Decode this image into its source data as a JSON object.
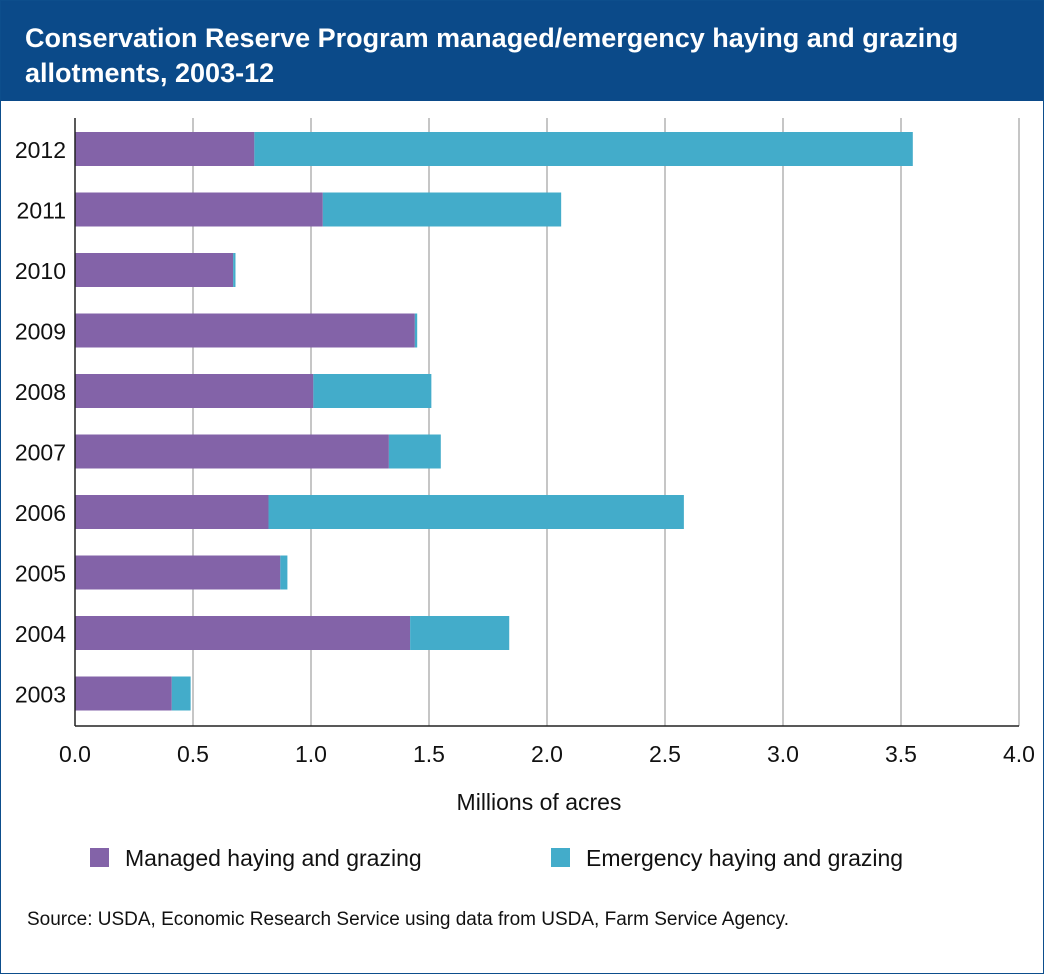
{
  "colors": {
    "title_background": "#0b4a89",
    "title_text": "#ffffff",
    "managed": "#8363a8",
    "emergency": "#43acca",
    "gridline": "#8c8c8c"
  },
  "chart_data": {
    "type": "bar",
    "orientation": "horizontal",
    "stacked": true,
    "title": "Conservation Reserve Program managed/emergency haying and grazing allotments, 2003-12",
    "xlabel": "Millions of acres",
    "ylabel": "",
    "xlim": [
      0,
      4
    ],
    "x_ticks": [
      "0.0",
      "0.5",
      "1.0",
      "1.5",
      "2.0",
      "2.5",
      "3.0",
      "3.5",
      "4.0"
    ],
    "grid": "vertical gridlines",
    "legend_position": "bottom",
    "categories": [
      "2012",
      "2011",
      "2010",
      "2009",
      "2008",
      "2007",
      "2006",
      "2005",
      "2004",
      "2003"
    ],
    "series": [
      {
        "name": "Managed haying and grazing",
        "values": [
          0.76,
          1.05,
          0.67,
          1.44,
          1.01,
          1.33,
          0.82,
          0.87,
          1.42,
          0.41
        ]
      },
      {
        "name": "Emergency haying and grazing",
        "values": [
          2.79,
          1.01,
          0.01,
          0.01,
          0.5,
          0.22,
          1.76,
          0.03,
          0.42,
          0.08
        ]
      }
    ],
    "source": "Source: USDA, Economic Research Service using data from USDA, Farm Service Agency."
  }
}
